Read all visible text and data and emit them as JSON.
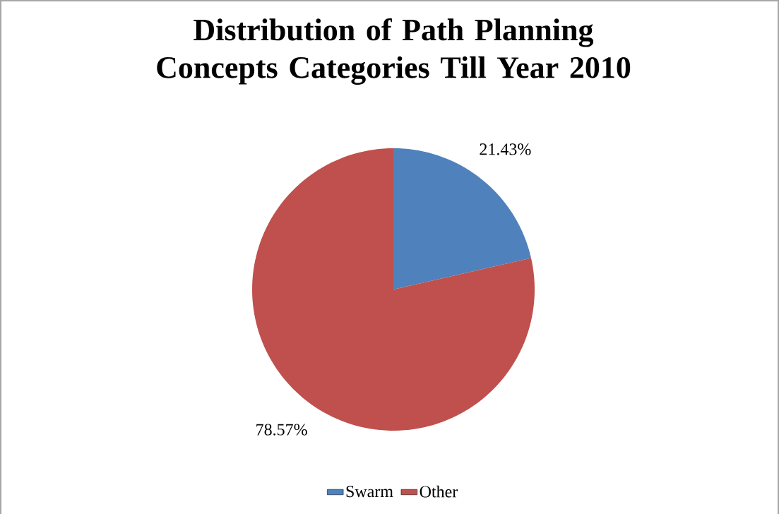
{
  "chart_data": {
    "type": "pie",
    "title": "Distribution of Path Planning Concepts Categories Till Year 2010",
    "categories": [
      "Swarm",
      "Other"
    ],
    "values": [
      21.43,
      78.57
    ],
    "colors": [
      "#4f81bd",
      "#c0504d"
    ],
    "value_labels": [
      "21.43%",
      "78.57%"
    ],
    "legend": "bottom"
  }
}
